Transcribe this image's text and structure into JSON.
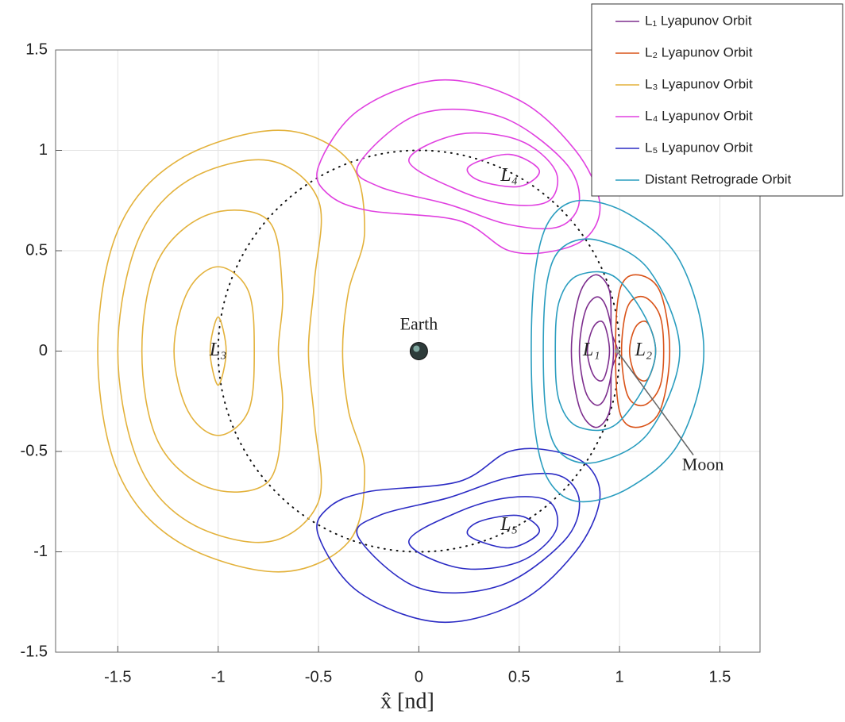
{
  "chart_data": {
    "type": "orbits",
    "xlabel": "x̂ [nd]",
    "xlim": [
      -1.81,
      1.7
    ],
    "ylim": [
      -1.5,
      1.5
    ],
    "xticks": [
      -1.5,
      -1,
      -0.5,
      0,
      0.5,
      1,
      1.5
    ],
    "yticks": [
      -1.5,
      -1,
      -0.5,
      0,
      0.5,
      1,
      1.5
    ],
    "grid": true,
    "legend": "upper right",
    "reference_circle": {
      "center": [
        0,
        0
      ],
      "radius": 1
    },
    "series": [
      {
        "name": "L₁ Lyapunov Orbit",
        "color": "#7e2f8e",
        "orbits": [
          {
            "x": [
              0.76,
              0.8,
              0.88,
              0.95,
              0.96,
              0.99,
              0.96,
              0.95,
              0.88,
              0.8
            ],
            "y": [
              0,
              0.28,
              0.38,
              0.3,
              0.1,
              0,
              -0.1,
              -0.3,
              -0.38,
              -0.28
            ]
          },
          {
            "x": [
              0.8,
              0.83,
              0.89,
              0.94,
              0.97,
              0.94,
              0.89,
              0.83
            ],
            "y": [
              0,
              0.2,
              0.27,
              0.2,
              0,
              -0.2,
              -0.27,
              -0.2
            ]
          },
          {
            "x": [
              0.84,
              0.87,
              0.92,
              0.95,
              0.92,
              0.87
            ],
            "y": [
              0,
              0.12,
              0.14,
              0,
              -0.14,
              -0.12
            ]
          }
        ]
      },
      {
        "name": "L₂ Lyapunov Orbit",
        "color": "#d95319",
        "orbits": [
          {
            "x": [
              0.98,
              1.0,
              1.08,
              1.2,
              1.25,
              1.2,
              1.08,
              1.0
            ],
            "y": [
              0,
              0.3,
              0.38,
              0.3,
              0,
              -0.3,
              -0.38,
              -0.3
            ]
          },
          {
            "x": [
              1.01,
              1.04,
              1.12,
              1.2,
              1.22,
              1.2,
              1.12,
              1.04
            ],
            "y": [
              0,
              0.22,
              0.27,
              0.18,
              0,
              -0.18,
              -0.27,
              -0.22
            ]
          },
          {
            "x": [
              1.05,
              1.08,
              1.14,
              1.18,
              1.14,
              1.08
            ],
            "y": [
              0,
              0.12,
              0.14,
              0,
              -0.14,
              -0.12
            ]
          }
        ]
      },
      {
        "name": "L₃ Lyapunov Orbit",
        "color": "#e3b23c",
        "orbits": [
          {
            "x": [
              -1.6,
              -1.5,
              -1.2,
              -0.7,
              -0.35,
              -0.27,
              -0.35,
              -0.38,
              -0.35,
              -0.27,
              -0.35,
              -0.7,
              -1.2,
              -1.5
            ],
            "y": [
              0,
              0.6,
              0.95,
              1.1,
              0.95,
              0.6,
              0.3,
              0,
              -0.3,
              -0.6,
              -0.95,
              -1.1,
              -0.95,
              -0.6
            ]
          },
          {
            "x": [
              -1.5,
              -1.4,
              -1.15,
              -0.75,
              -0.5,
              -0.52,
              -0.55,
              -0.52,
              -0.5,
              -0.75,
              -1.15,
              -1.4
            ],
            "y": [
              0,
              0.55,
              0.85,
              0.95,
              0.75,
              0.35,
              0,
              -0.35,
              -0.75,
              -0.95,
              -0.85,
              -0.55
            ]
          },
          {
            "x": [
              -1.38,
              -1.3,
              -1.05,
              -0.75,
              -0.68,
              -0.7,
              -0.68,
              -0.75,
              -1.05,
              -1.3
            ],
            "y": [
              0,
              0.45,
              0.68,
              0.65,
              0.3,
              0,
              -0.3,
              -0.65,
              -0.68,
              -0.45
            ]
          },
          {
            "x": [
              -1.22,
              -1.15,
              -1,
              -0.85,
              -0.82,
              -0.85,
              -1,
              -1.15
            ],
            "y": [
              0,
              0.3,
              0.42,
              0.3,
              0,
              -0.3,
              -0.42,
              -0.3
            ]
          },
          {
            "x": [
              -1.04,
              -1,
              -0.96,
              -1
            ],
            "y": [
              0,
              0.17,
              0,
              -0.17
            ]
          }
        ]
      },
      {
        "name": "L₄ Lyapunov Orbit",
        "color": "#e040e0",
        "orbits": [
          {
            "x": [
              -0.5,
              -0.3,
              0.1,
              0.5,
              0.78,
              0.9,
              0.85,
              0.68,
              0.45,
              0.2,
              -0.25,
              -0.45
            ],
            "y": [
              0.92,
              1.2,
              1.35,
              1.25,
              1.0,
              0.75,
              0.58,
              0.5,
              0.5,
              0.65,
              0.7,
              0.78
            ]
          },
          {
            "x": [
              -0.3,
              0,
              0.4,
              0.72,
              0.8,
              0.7,
              0.45,
              0.15,
              -0.2
            ],
            "y": [
              0.93,
              1.18,
              1.17,
              0.95,
              0.75,
              0.62,
              0.63,
              0.73,
              0.82
            ]
          },
          {
            "x": [
              -0.05,
              0.2,
              0.5,
              0.68,
              0.65,
              0.45,
              0.2
            ],
            "y": [
              0.95,
              1.08,
              1.05,
              0.9,
              0.75,
              0.73,
              0.8
            ]
          },
          {
            "x": [
              0.25,
              0.45,
              0.6,
              0.5,
              0.3
            ],
            "y": [
              0.92,
              0.98,
              0.9,
              0.82,
              0.85
            ]
          }
        ]
      },
      {
        "name": "L₅ Lyapunov Orbit",
        "color": "#2b2bc4",
        "orbits": [
          {
            "x": [
              -0.5,
              -0.3,
              0.1,
              0.5,
              0.78,
              0.9,
              0.85,
              0.68,
              0.45,
              0.2,
              -0.25,
              -0.45
            ],
            "y": [
              -0.92,
              -1.2,
              -1.35,
              -1.25,
              -1.0,
              -0.75,
              -0.58,
              -0.5,
              -0.5,
              -0.65,
              -0.7,
              -0.78
            ]
          },
          {
            "x": [
              -0.3,
              0,
              0.4,
              0.72,
              0.8,
              0.7,
              0.45,
              0.15,
              -0.2
            ],
            "y": [
              -0.93,
              -1.18,
              -1.17,
              -0.95,
              -0.75,
              -0.62,
              -0.63,
              -0.73,
              -0.82
            ]
          },
          {
            "x": [
              -0.05,
              0.2,
              0.5,
              0.68,
              0.65,
              0.45,
              0.2
            ],
            "y": [
              -0.95,
              -1.08,
              -1.05,
              -0.9,
              -0.75,
              -0.73,
              -0.8
            ]
          },
          {
            "x": [
              0.25,
              0.45,
              0.6,
              0.5,
              0.3
            ],
            "y": [
              -0.92,
              -0.98,
              -0.9,
              -0.82,
              -0.85
            ]
          }
        ]
      },
      {
        "name": "Distant Retrograde Orbit",
        "color": "#2a9dbf",
        "orbits": [
          {
            "x": [
              0.56,
              0.58,
              0.65,
              0.8,
              1.05,
              1.3,
              1.42,
              1.3,
              1.05,
              0.8,
              0.65,
              0.58
            ],
            "y": [
              0,
              0.4,
              0.65,
              0.75,
              0.68,
              0.45,
              0,
              -0.45,
              -0.68,
              -0.75,
              -0.65,
              -0.4
            ]
          },
          {
            "x": [
              0.62,
              0.64,
              0.72,
              0.9,
              1.15,
              1.3,
              1.15,
              0.9,
              0.72,
              0.64
            ],
            "y": [
              0,
              0.35,
              0.52,
              0.55,
              0.4,
              0,
              -0.4,
              -0.55,
              -0.52,
              -0.35
            ]
          },
          {
            "x": [
              0.68,
              0.7,
              0.8,
              1.0,
              1.18,
              1.0,
              0.8,
              0.7
            ],
            "y": [
              0,
              0.25,
              0.38,
              0.35,
              0,
              -0.35,
              -0.38,
              -0.25
            ]
          }
        ]
      }
    ],
    "lagrange_points": [
      {
        "label": "L₁",
        "x": 0.86,
        "y": 0
      },
      {
        "label": "L₂",
        "x": 1.12,
        "y": 0
      },
      {
        "label": "L₃",
        "x": -1.0,
        "y": 0
      },
      {
        "label": "L₄",
        "x": 0.45,
        "y": 0.87
      },
      {
        "label": "L₅",
        "x": 0.45,
        "y": -0.87
      }
    ],
    "bodies": [
      {
        "name": "Earth",
        "x": 0,
        "y": 0
      },
      {
        "name": "Moon",
        "x": 0.988,
        "y": 0
      }
    ]
  }
}
